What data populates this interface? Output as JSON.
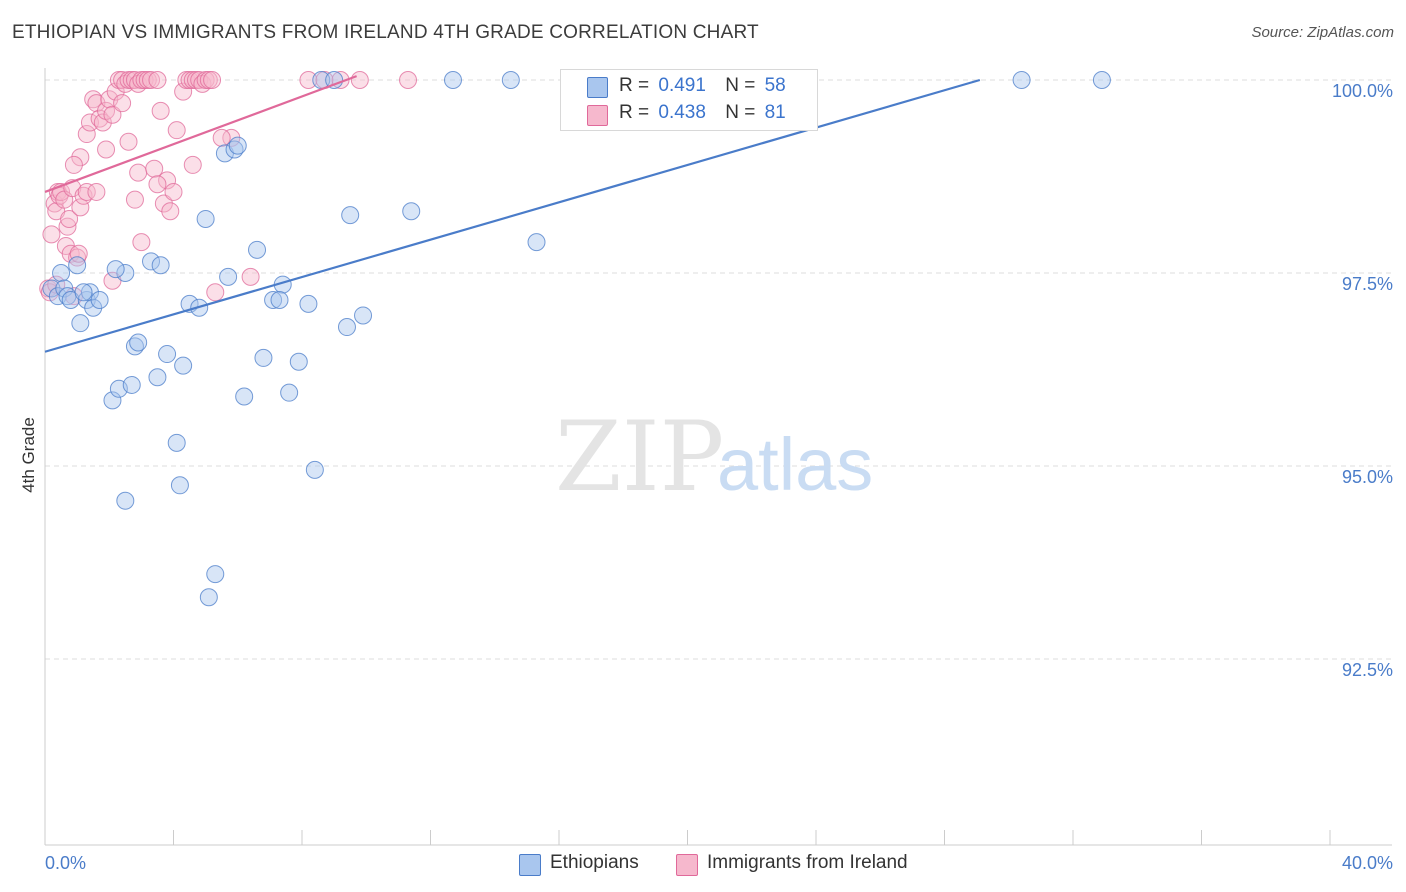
{
  "title": "ETHIOPIAN VS IMMIGRANTS FROM IRELAND 4TH GRADE CORRELATION CHART",
  "source": "Source: ZipAtlas.com",
  "watermark": {
    "zip": "ZIP",
    "atlas": "atlas"
  },
  "legend": {
    "rows": [
      {
        "r_label": "R =",
        "r_value": "0.491",
        "n_label": "N =",
        "n_value": "58"
      },
      {
        "r_label": "R =",
        "r_value": "0.438",
        "n_label": "N =",
        "n_value": "81"
      }
    ]
  },
  "bottom_legend": {
    "series1": "Ethiopians",
    "series2": "Immigrants from Ireland"
  },
  "colors": {
    "blue": "#4a7cc9",
    "blue_fill": "#a9c6ee",
    "pink": "#e0699a",
    "pink_fill": "#f6b8cd",
    "grid": "#dcdcdc"
  },
  "chart_data": {
    "type": "scatter",
    "title": "ETHIOPIAN VS IMMIGRANTS FROM IRELAND 4TH GRADE CORRELATION CHART",
    "xlabel": "",
    "ylabel": "4th Grade",
    "xlim": [
      0,
      40
    ],
    "ylim": [
      90.1,
      100.2
    ],
    "x_tick_labels": [
      "0.0%",
      "40.0%"
    ],
    "y_ticks": [
      92.5,
      95.0,
      97.5,
      100.0
    ],
    "y_tick_labels": [
      "92.5%",
      "95.0%",
      "97.5%",
      "100.0%"
    ],
    "series": [
      {
        "name": "Ethiopians",
        "color": "#4a7cc9",
        "R": 0.491,
        "N": 58,
        "trendline": {
          "x": [
            0.0,
            29.1
          ],
          "y": [
            96.48,
            100.0
          ]
        },
        "points": [
          [
            0.2,
            97.3
          ],
          [
            0.4,
            97.2
          ],
          [
            0.5,
            97.5
          ],
          [
            0.6,
            97.3
          ],
          [
            0.7,
            97.2
          ],
          [
            0.8,
            97.15
          ],
          [
            1.0,
            97.6
          ],
          [
            1.1,
            96.85
          ],
          [
            1.3,
            97.15
          ],
          [
            1.4,
            97.25
          ],
          [
            1.5,
            97.05
          ],
          [
            1.7,
            97.15
          ],
          [
            2.1,
            95.85
          ],
          [
            2.3,
            96.0
          ],
          [
            2.7,
            96.05
          ],
          [
            2.8,
            96.55
          ],
          [
            2.9,
            96.6
          ],
          [
            3.3,
            97.65
          ],
          [
            3.5,
            96.15
          ],
          [
            3.8,
            96.45
          ],
          [
            4.1,
            95.3
          ],
          [
            4.2,
            94.75
          ],
          [
            4.3,
            96.3
          ],
          [
            4.5,
            97.1
          ],
          [
            5.3,
            93.6
          ],
          [
            5.1,
            93.3
          ],
          [
            5.7,
            97.45
          ],
          [
            5.6,
            99.05
          ],
          [
            5.9,
            99.1
          ],
          [
            6.2,
            95.9
          ],
          [
            6.6,
            97.8
          ],
          [
            6.8,
            96.4
          ],
          [
            7.1,
            97.15
          ],
          [
            7.4,
            97.35
          ],
          [
            7.6,
            95.95
          ],
          [
            7.9,
            96.35
          ],
          [
            8.2,
            97.1
          ],
          [
            8.4,
            94.95
          ],
          [
            8.6,
            100.0
          ],
          [
            9.0,
            100.0
          ],
          [
            9.4,
            96.8
          ],
          [
            9.5,
            98.25
          ],
          [
            9.9,
            96.95
          ],
          [
            11.4,
            98.3
          ],
          [
            12.7,
            100.0
          ],
          [
            14.5,
            100.0
          ],
          [
            15.3,
            97.9
          ],
          [
            3.6,
            97.6
          ],
          [
            5.0,
            98.2
          ],
          [
            7.3,
            97.15
          ],
          [
            1.2,
            97.25
          ],
          [
            2.5,
            97.5
          ],
          [
            6.0,
            99.15
          ],
          [
            4.8,
            97.05
          ],
          [
            2.2,
            97.55
          ],
          [
            30.4,
            100.0
          ],
          [
            32.9,
            100.0
          ],
          [
            2.5,
            94.55
          ]
        ]
      },
      {
        "name": "Immigrants from Ireland",
        "color": "#e0699a",
        "R": 0.438,
        "N": 81,
        "trendline": {
          "x": [
            0.0,
            9.7
          ],
          "y": [
            98.55,
            100.05
          ]
        },
        "points": [
          [
            0.1,
            97.3
          ],
          [
            0.15,
            97.25
          ],
          [
            0.2,
            98.0
          ],
          [
            0.3,
            98.4
          ],
          [
            0.35,
            98.3
          ],
          [
            0.4,
            98.55
          ],
          [
            0.45,
            98.5
          ],
          [
            0.5,
            98.55
          ],
          [
            0.6,
            98.45
          ],
          [
            0.65,
            97.85
          ],
          [
            0.7,
            98.1
          ],
          [
            0.75,
            98.2
          ],
          [
            0.8,
            97.75
          ],
          [
            0.85,
            98.6
          ],
          [
            0.9,
            97.2
          ],
          [
            1.0,
            97.7
          ],
          [
            1.05,
            97.75
          ],
          [
            1.1,
            98.35
          ],
          [
            1.2,
            98.5
          ],
          [
            1.3,
            98.55
          ],
          [
            1.1,
            99.0
          ],
          [
            1.3,
            99.3
          ],
          [
            1.4,
            99.45
          ],
          [
            1.5,
            99.75
          ],
          [
            1.6,
            99.7
          ],
          [
            1.7,
            99.5
          ],
          [
            1.8,
            99.45
          ],
          [
            1.9,
            99.6
          ],
          [
            2.0,
            99.75
          ],
          [
            2.1,
            99.55
          ],
          [
            2.2,
            99.85
          ],
          [
            2.3,
            100.0
          ],
          [
            2.4,
            100.0
          ],
          [
            2.5,
            99.95
          ],
          [
            2.6,
            100.0
          ],
          [
            2.7,
            100.0
          ],
          [
            2.8,
            100.0
          ],
          [
            2.9,
            99.95
          ],
          [
            3.0,
            100.0
          ],
          [
            3.1,
            100.0
          ],
          [
            3.2,
            100.0
          ],
          [
            3.3,
            100.0
          ],
          [
            3.5,
            100.0
          ],
          [
            3.6,
            99.6
          ],
          [
            3.7,
            98.4
          ],
          [
            3.8,
            98.7
          ],
          [
            3.9,
            98.3
          ],
          [
            4.0,
            98.55
          ],
          [
            4.1,
            99.35
          ],
          [
            4.3,
            99.85
          ],
          [
            4.4,
            100.0
          ],
          [
            4.5,
            100.0
          ],
          [
            4.6,
            100.0
          ],
          [
            4.7,
            100.0
          ],
          [
            4.8,
            100.0
          ],
          [
            4.9,
            99.95
          ],
          [
            5.0,
            100.0
          ],
          [
            5.1,
            100.0
          ],
          [
            5.2,
            100.0
          ],
          [
            4.6,
            98.9
          ],
          [
            5.3,
            97.25
          ],
          [
            5.8,
            99.25
          ],
          [
            6.4,
            97.45
          ],
          [
            2.6,
            99.2
          ],
          [
            2.8,
            98.45
          ],
          [
            2.9,
            98.8
          ],
          [
            3.0,
            97.9
          ],
          [
            3.4,
            98.85
          ],
          [
            3.5,
            98.65
          ],
          [
            1.9,
            99.1
          ],
          [
            0.9,
            98.9
          ],
          [
            2.1,
            97.4
          ],
          [
            8.2,
            100.0
          ],
          [
            8.7,
            100.0
          ],
          [
            9.2,
            100.0
          ],
          [
            9.8,
            100.0
          ],
          [
            11.3,
            100.0
          ],
          [
            5.5,
            99.25
          ],
          [
            2.4,
            99.7
          ],
          [
            1.6,
            98.55
          ],
          [
            0.35,
            97.35
          ]
        ]
      }
    ]
  }
}
